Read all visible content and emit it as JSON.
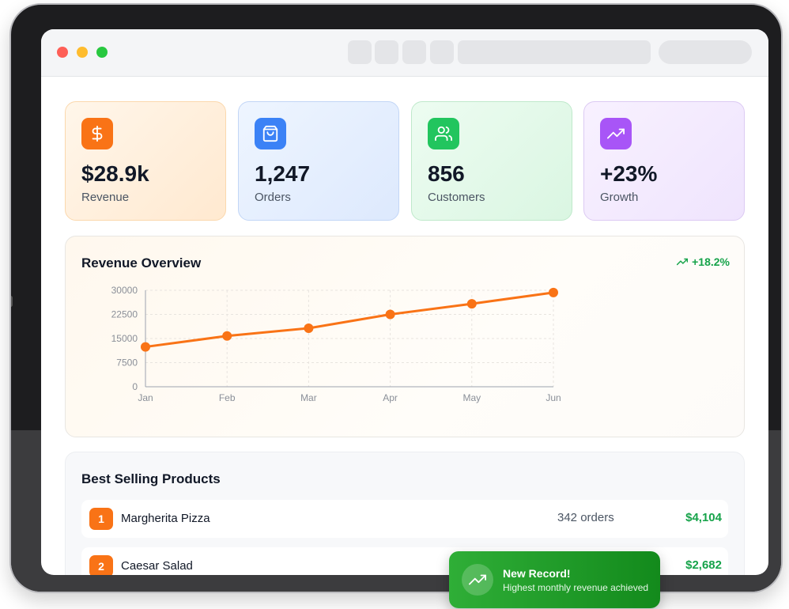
{
  "stats": [
    {
      "value": "$28.9k",
      "label": "Revenue",
      "icon": "dollar-icon",
      "color": "#f97316"
    },
    {
      "value": "1,247",
      "label": "Orders",
      "icon": "shopping-bag-icon",
      "color": "#3b82f6"
    },
    {
      "value": "856",
      "label": "Customers",
      "icon": "users-icon",
      "color": "#22c55e"
    },
    {
      "value": "+23%",
      "label": "Growth",
      "icon": "trending-up-icon",
      "color": "#a855f7"
    }
  ],
  "revenue_overview": {
    "title": "Revenue Overview",
    "trend": "+18.2%"
  },
  "chart_data": {
    "type": "line",
    "categories": [
      "Jan",
      "Feb",
      "Mar",
      "Apr",
      "May",
      "Jun"
    ],
    "series": [
      {
        "values": [
          12400,
          15800,
          18200,
          22500,
          25800,
          29300
        ]
      }
    ],
    "ylim": [
      0,
      30000
    ],
    "yticks": [
      "30000",
      "22500",
      "15000",
      "7500",
      "0"
    ],
    "grid": true,
    "color": "#f97316"
  },
  "best_selling": {
    "title": "Best Selling Products",
    "items": [
      {
        "rank": "1",
        "name": "Margherita Pizza",
        "orders": "342 orders",
        "revenue": "$4,104"
      },
      {
        "rank": "2",
        "name": "Caesar Salad",
        "orders": "",
        "revenue": "$2,682"
      }
    ]
  },
  "toast": {
    "title": "New Record!",
    "message": "Highest monthly revenue achieved"
  }
}
